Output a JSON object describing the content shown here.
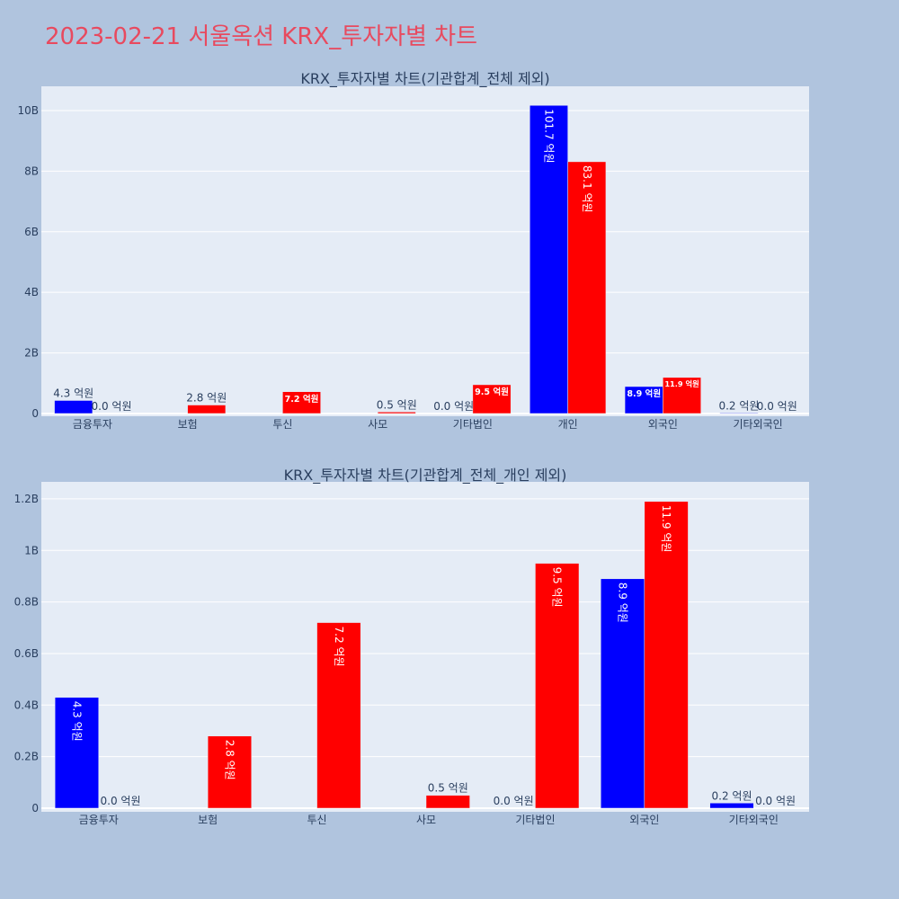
{
  "title": "2023-02-21 서울옥션 KRX_투자자별 차트",
  "colors": {
    "page_background": "#B0C4DE",
    "plot_background": "#E5ECF6",
    "title": "#E84A5F",
    "text": "#2A3F5F",
    "grid": "#FFFFFF",
    "inside_label": "#FFFFFF"
  },
  "chart_data": [
    {
      "type": "bar",
      "title": "KRX_투자자별 차트(기관합계_전체 제외)",
      "categories": [
        "금융투자",
        "보험",
        "투신",
        "사모",
        "기타법인",
        "개인",
        "외국인",
        "기타외국인"
      ],
      "series": [
        {
          "color": "#0000FF",
          "values": [
            430000000,
            null,
            null,
            null,
            0,
            10170000000,
            890000000,
            20000000
          ],
          "labels": [
            "4.3 억원",
            null,
            null,
            null,
            "0.0 억원",
            "101.7 억원",
            "8.9 억원",
            "0.2 억원"
          ]
        },
        {
          "color": "#FF0000",
          "values": [
            0,
            280000000,
            720000000,
            50000000,
            950000000,
            8310000000,
            1190000000,
            0
          ],
          "labels": [
            "0.0 억원",
            "2.8 억원",
            "7.2 억원",
            "0.5 억원",
            "9.5 억원",
            "83.1 억원",
            "11.9 억원",
            "0.0 억원"
          ]
        }
      ],
      "ylim": [
        -90000000,
        10800000000
      ],
      "yticks": [
        0,
        2000000000,
        4000000000,
        6000000000,
        8000000000,
        10000000000
      ],
      "ytick_labels": [
        "0",
        "2B",
        "4B",
        "6B",
        "8B",
        "10B"
      ],
      "grid": true
    },
    {
      "type": "bar",
      "title": "KRX_투자자별 차트(기관합계_전체_개인 제외)",
      "categories": [
        "금융투자",
        "보험",
        "투신",
        "사모",
        "기타법인",
        "외국인",
        "기타외국인"
      ],
      "series": [
        {
          "color": "#0000FF",
          "values": [
            430000000,
            null,
            null,
            null,
            0,
            890000000,
            20000000
          ],
          "labels": [
            "4.3 억원",
            null,
            null,
            null,
            "0.0 억원",
            "8.9 억원",
            "0.2 억원"
          ]
        },
        {
          "color": "#FF0000",
          "values": [
            0,
            280000000,
            720000000,
            50000000,
            950000000,
            1190000000,
            0
          ],
          "labels": [
            "0.0 억원",
            "2.8 억원",
            "7.2 억원",
            "0.5 억원",
            "9.5 억원",
            "11.9 억원",
            "0.0 억원"
          ]
        }
      ],
      "ylim": [
        -14000000,
        1266000000
      ],
      "yticks": [
        0,
        200000000,
        400000000,
        600000000,
        800000000,
        1000000000,
        1200000000
      ],
      "ytick_labels": [
        "0",
        "0.2B",
        "0.4B",
        "0.6B",
        "0.8B",
        "1B",
        "1.2B"
      ],
      "grid": true
    }
  ]
}
